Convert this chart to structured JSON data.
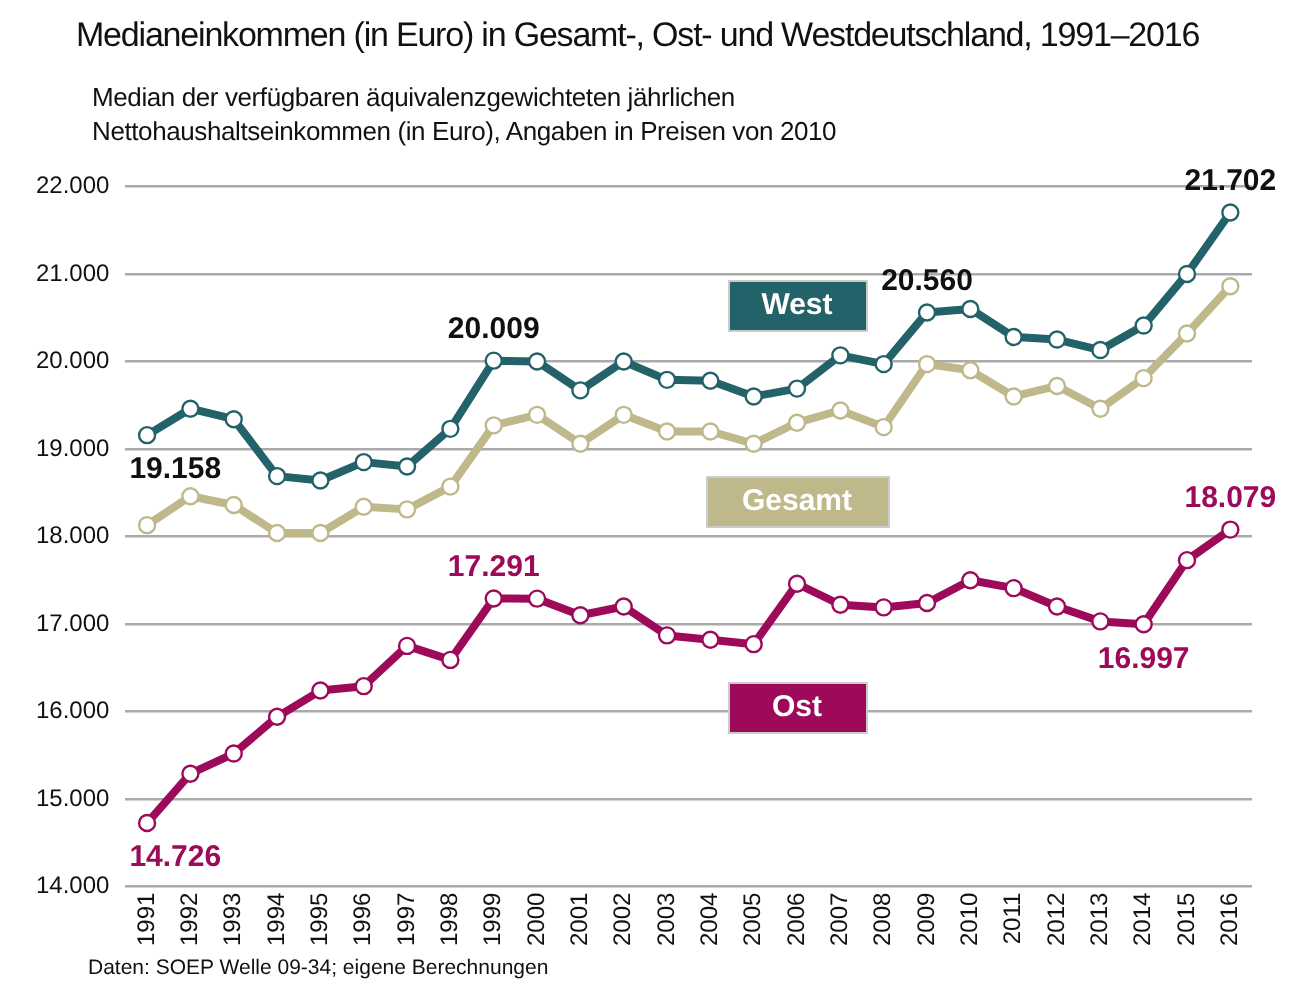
{
  "chart_data": {
    "type": "line",
    "title": "Medianeinkommen (in Euro) in Gesamt-, Ost- und Westdeutschland, 1991–2016",
    "subtitle": "Median der verfügbaren äquivalenzgewichteten jährlichen Nettohaushaltseinkommen (in Euro), Angaben in Preisen von 2010",
    "categories": [
      "1991",
      "1992",
      "1993",
      "1994",
      "1995",
      "1996",
      "1997",
      "1998",
      "1999",
      "2000",
      "2001",
      "2002",
      "2003",
      "2004",
      "2005",
      "2006",
      "2007",
      "2008",
      "2009",
      "2010",
      "2011",
      "2012",
      "2013",
      "2014",
      "2015",
      "2016"
    ],
    "series": [
      {
        "name": "West",
        "color": "#24626a",
        "values": [
          19158,
          19460,
          19340,
          18690,
          18640,
          18850,
          18800,
          19230,
          20009,
          20000,
          19670,
          20000,
          19790,
          19780,
          19600,
          19690,
          20070,
          19970,
          20560,
          20600,
          20280,
          20250,
          20130,
          20410,
          21000,
          21702
        ],
        "value_labels": [
          "19.158",
          null,
          null,
          null,
          null,
          null,
          null,
          null,
          "20.009",
          null,
          null,
          null,
          null,
          null,
          null,
          null,
          null,
          null,
          "20.560",
          null,
          null,
          null,
          null,
          null,
          null,
          "21.702"
        ]
      },
      {
        "name": "Gesamt",
        "color": "#bfb88a",
        "values": [
          18130,
          18460,
          18360,
          18040,
          18040,
          18340,
          18310,
          18570,
          19270,
          19390,
          19060,
          19390,
          19200,
          19200,
          19060,
          19300,
          19440,
          19250,
          19970,
          19900,
          19600,
          19720,
          19460,
          19810,
          20320,
          20860
        ]
      },
      {
        "name": "Ost",
        "color": "#9e0a5a",
        "values": [
          14726,
          15290,
          15520,
          15940,
          16240,
          16290,
          16750,
          16590,
          17291,
          17290,
          17100,
          17200,
          16870,
          16820,
          16770,
          17460,
          17220,
          17190,
          17240,
          17500,
          17410,
          17200,
          17030,
          16997,
          17730,
          18079
        ],
        "value_labels": [
          "14.726",
          null,
          null,
          null,
          null,
          null,
          null,
          null,
          "17.291",
          null,
          null,
          null,
          null,
          null,
          null,
          null,
          null,
          null,
          null,
          null,
          null,
          null,
          null,
          "16.997",
          null,
          "18.079"
        ]
      }
    ],
    "ylim": [
      14000,
      22000
    ],
    "yticks": [
      {
        "value": 14000,
        "label": "14.000"
      },
      {
        "value": 15000,
        "label": "15.000"
      },
      {
        "value": 16000,
        "label": "16.000"
      },
      {
        "value": 17000,
        "label": "17.000"
      },
      {
        "value": 18000,
        "label": "18.000"
      },
      {
        "value": 19000,
        "label": "19.000"
      },
      {
        "value": 20000,
        "label": "20.000"
      },
      {
        "value": 21000,
        "label": "21.000"
      },
      {
        "value": 22000,
        "label": "22.000"
      }
    ],
    "grid": "y",
    "legend": false,
    "marker": "circle",
    "line_style": "solid",
    "annotations": [
      "Daten: SOEP Welle 09-34; eigene Berechnungen"
    ]
  }
}
